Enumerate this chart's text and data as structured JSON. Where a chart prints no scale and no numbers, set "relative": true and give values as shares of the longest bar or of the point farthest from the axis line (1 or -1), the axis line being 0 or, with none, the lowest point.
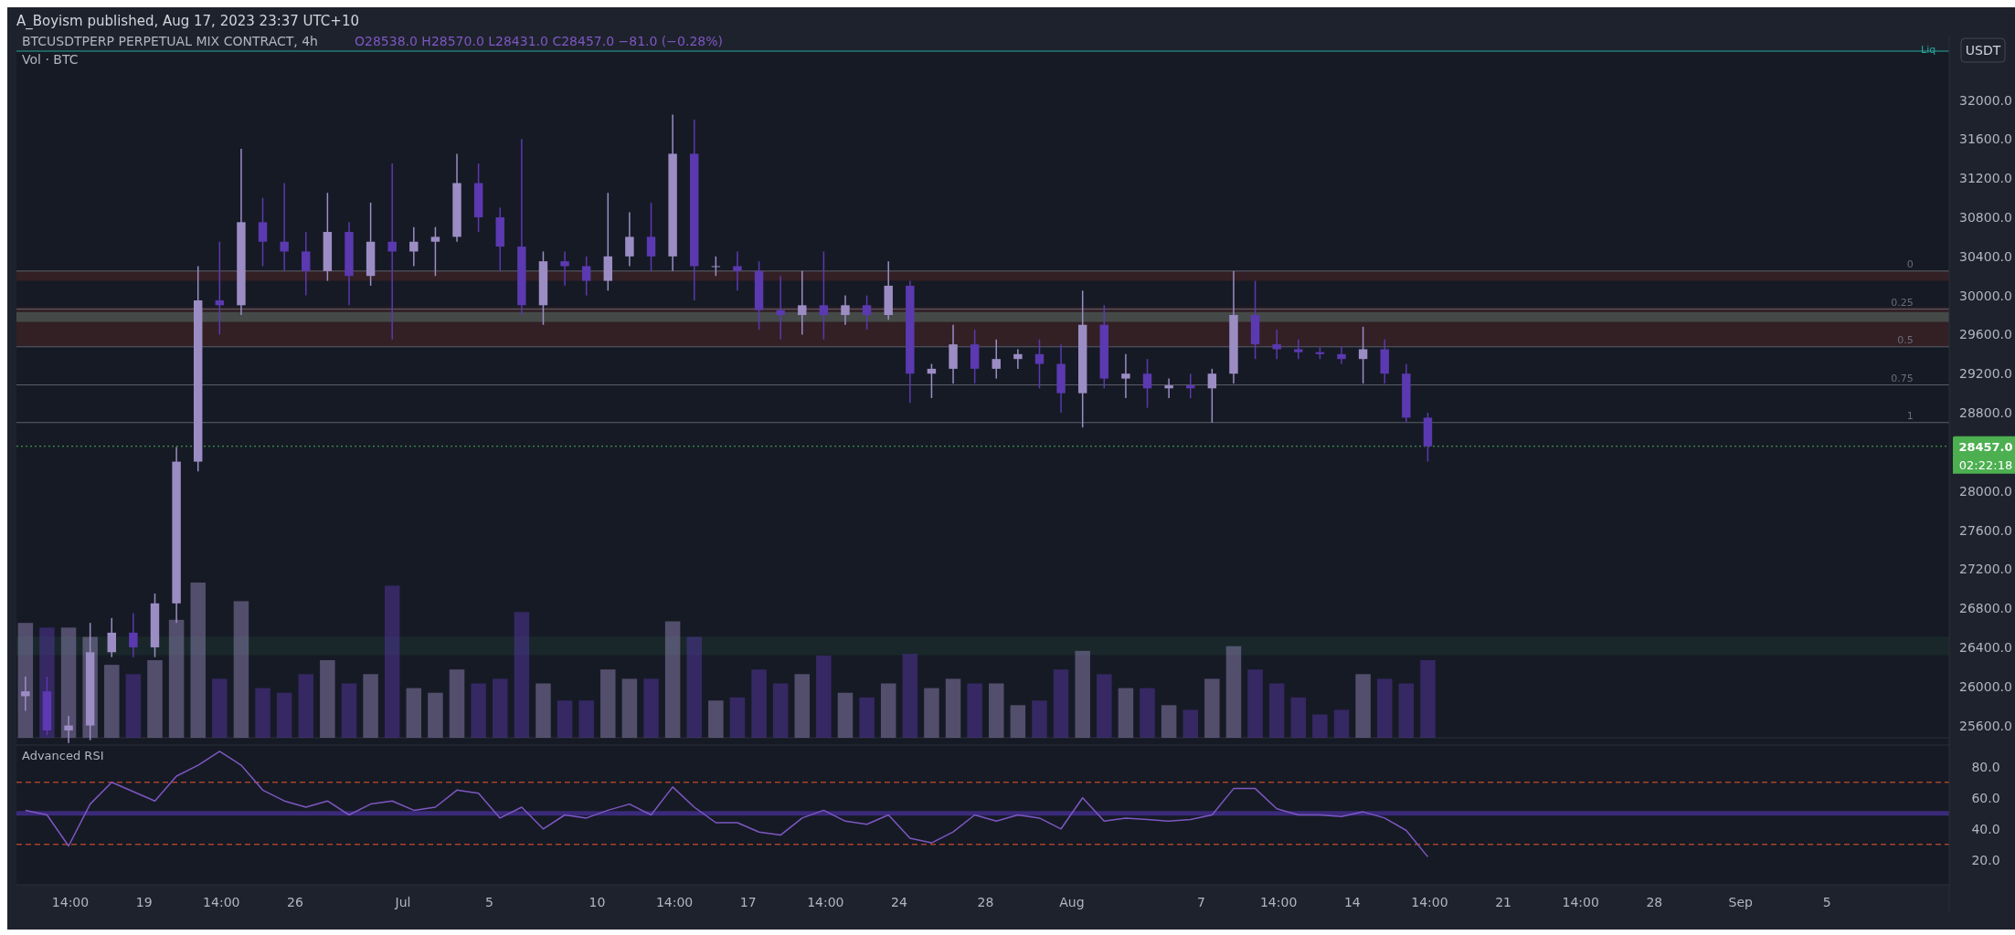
{
  "chart_data": [
    {
      "type": "candlestick",
      "title": "BTCUSDTPERP PERPETUAL MIX CONTRACT, 4h",
      "subtitle": "O28538.0 H28570.0 L28431.0 C28457.0 −81.0 (−0.28%)",
      "annotations": [
        "A_Boyism published, Aug 17, 2023 23:37 UTC+10",
        "USDT",
        "Liq",
        "02:22:18",
        {
          "text": "0",
          "x": "2023-09-09",
          "y": 30250
        },
        {
          "text": "0.25",
          "x": "2023-09-09",
          "y": 29860
        },
        {
          "text": "0.5",
          "x": "2023-09-09",
          "y": 29475
        },
        {
          "text": "0.75",
          "x": "2023-09-09",
          "y": 29085
        },
        {
          "text": "1",
          "x": "2023-09-09",
          "y": 28700
        }
      ],
      "tick_labels": "y",
      "x": [
        "2023-06-13T12:00",
        "2023-06-14T12:00",
        "2023-06-15T12:00",
        "2023-06-16T12:00",
        "2023-06-17T12:00",
        "2023-06-18T12:00",
        "2023-06-19T12:00",
        "2023-06-20T12:00",
        "2023-06-21T12:00",
        "2023-06-22T12:00",
        "2023-06-23T12:00",
        "2023-06-24T12:00",
        "2023-06-25T12:00",
        "2023-06-26T12:00",
        "2023-06-27T12:00",
        "2023-06-28T12:00",
        "2023-06-29T12:00",
        "2023-06-30T12:00",
        "2023-07-01T12:00",
        "2023-07-02T12:00",
        "2023-07-03T12:00",
        "2023-07-04T12:00",
        "2023-07-05T12:00",
        "2023-07-06T12:00",
        "2023-07-07T12:00",
        "2023-07-08T12:00",
        "2023-07-09T12:00",
        "2023-07-10T12:00",
        "2023-07-11T12:00",
        "2023-07-12T12:00",
        "2023-07-13T12:00",
        "2023-07-14T12:00",
        "2023-07-15T12:00",
        "2023-07-16T12:00",
        "2023-07-17T12:00",
        "2023-07-18T12:00",
        "2023-07-19T12:00",
        "2023-07-20T12:00",
        "2023-07-21T12:00",
        "2023-07-22T12:00",
        "2023-07-23T12:00",
        "2023-07-24T12:00",
        "2023-07-25T12:00",
        "2023-07-26T12:00",
        "2023-07-27T12:00",
        "2023-07-28T12:00",
        "2023-07-29T12:00",
        "2023-07-30T12:00",
        "2023-07-31T12:00",
        "2023-08-01T12:00",
        "2023-08-02T12:00",
        "2023-08-03T12:00",
        "2023-08-04T12:00",
        "2023-08-05T12:00",
        "2023-08-06T12:00",
        "2023-08-07T12:00",
        "2023-08-08T12:00",
        "2023-08-09T12:00",
        "2023-08-10T12:00",
        "2023-08-11T12:00",
        "2023-08-12T12:00",
        "2023-08-13T12:00",
        "2023-08-14T12:00",
        "2023-08-15T12:00",
        "2023-08-16T12:00",
        "2023-08-17T12:00"
      ],
      "ohlc": [
        [
          25900,
          26100,
          25750,
          25950
        ],
        [
          25950,
          26100,
          25500,
          25550
        ],
        [
          25550,
          25700,
          25420,
          25600
        ],
        [
          25600,
          26650,
          25450,
          26350
        ],
        [
          26350,
          26700,
          26300,
          26550
        ],
        [
          26550,
          26750,
          26300,
          26400
        ],
        [
          26400,
          26950,
          26300,
          26850
        ],
        [
          26850,
          28450,
          26650,
          28300
        ],
        [
          28300,
          30300,
          28200,
          29950
        ],
        [
          29950,
          30550,
          29600,
          29900
        ],
        [
          29900,
          31500,
          29800,
          30750
        ],
        [
          30750,
          31000,
          30300,
          30550
        ],
        [
          30550,
          31150,
          30250,
          30450
        ],
        [
          30450,
          30650,
          30000,
          30250
        ],
        [
          30250,
          31050,
          30150,
          30650
        ],
        [
          30650,
          30750,
          29900,
          30200
        ],
        [
          30200,
          30950,
          30100,
          30550
        ],
        [
          30550,
          31350,
          29550,
          30450
        ],
        [
          30450,
          30700,
          30300,
          30550
        ],
        [
          30550,
          30700,
          30200,
          30600
        ],
        [
          30600,
          31450,
          30550,
          31150
        ],
        [
          31150,
          31350,
          30650,
          30800
        ],
        [
          30800,
          30900,
          30250,
          30500
        ],
        [
          30500,
          31600,
          29800,
          29900
        ],
        [
          29900,
          30450,
          29700,
          30350
        ],
        [
          30350,
          30450,
          30100,
          30300
        ],
        [
          30300,
          30400,
          30000,
          30150
        ],
        [
          30150,
          31050,
          30050,
          30400
        ],
        [
          30400,
          30850,
          30300,
          30600
        ],
        [
          30600,
          30950,
          30250,
          30400
        ],
        [
          30400,
          31850,
          30250,
          31450
        ],
        [
          31450,
          31800,
          29950,
          30300
        ],
        [
          30300,
          30400,
          30200,
          30300
        ],
        [
          30300,
          30450,
          30050,
          30250
        ],
        [
          30250,
          30350,
          29650,
          29850
        ],
        [
          29850,
          30200,
          29550,
          29800
        ],
        [
          29800,
          30250,
          29600,
          29900
        ],
        [
          29900,
          30450,
          29550,
          29800
        ],
        [
          29800,
          30000,
          29700,
          29900
        ],
        [
          29900,
          30000,
          29650,
          29800
        ],
        [
          29800,
          30350,
          29750,
          30100
        ],
        [
          30100,
          30150,
          28900,
          29200
        ],
        [
          29200,
          29300,
          28950,
          29250
        ],
        [
          29250,
          29700,
          29100,
          29500
        ],
        [
          29500,
          29650,
          29100,
          29250
        ],
        [
          29250,
          29550,
          29150,
          29350
        ],
        [
          29350,
          29450,
          29250,
          29400
        ],
        [
          29400,
          29550,
          29050,
          29300
        ],
        [
          29300,
          29500,
          28800,
          29000
        ],
        [
          29000,
          30050,
          28650,
          29700
        ],
        [
          29700,
          29900,
          29050,
          29150
        ],
        [
          29150,
          29400,
          28950,
          29200
        ],
        [
          29200,
          29350,
          28850,
          29050
        ],
        [
          29050,
          29150,
          28950,
          29080
        ],
        [
          29080,
          29200,
          28950,
          29050
        ],
        [
          29050,
          29250,
          28700,
          29200
        ],
        [
          29200,
          30250,
          29100,
          29800
        ],
        [
          29800,
          30150,
          29350,
          29500
        ],
        [
          29500,
          29650,
          29350,
          29450
        ],
        [
          29450,
          29550,
          29350,
          29420
        ],
        [
          29420,
          29470,
          29350,
          29400
        ],
        [
          29400,
          29480,
          29300,
          29350
        ],
        [
          29350,
          29680,
          29100,
          29450
        ],
        [
          29450,
          29550,
          29100,
          29200
        ],
        [
          29200,
          29300,
          28700,
          28750
        ],
        [
          28750,
          28800,
          28300,
          28457
        ]
      ],
      "xlim": [
        "2023-06-13T02:00",
        "2023-09-10T16:00"
      ],
      "ylim": [
        25400,
        32500
      ],
      "yticks": [
        {
          "value": 25600,
          "label": "25600.0"
        },
        {
          "value": 26000,
          "label": "26000.0"
        },
        {
          "value": 26400,
          "label": "26400.0"
        },
        {
          "value": 26800,
          "label": "26800.0"
        },
        {
          "value": 27200,
          "label": "27200.0"
        },
        {
          "value": 27600,
          "label": "27600.0"
        },
        {
          "value": 28000,
          "label": "28000.0"
        },
        {
          "value": 28800,
          "label": "28800.0"
        },
        {
          "value": 29200,
          "label": "29200.0"
        },
        {
          "value": 29600,
          "label": "29600.0"
        },
        {
          "value": 30000,
          "label": "30000.0"
        },
        {
          "value": 30400,
          "label": "30400.0"
        },
        {
          "value": 30800,
          "label": "30800.0"
        },
        {
          "value": 31200,
          "label": "31200.0"
        },
        {
          "value": 31600,
          "label": "31600.0"
        },
        {
          "value": 32000,
          "label": "32000.0"
        }
      ],
      "bands": [
        {
          "axis": "y",
          "from": 29480,
          "to": 29880,
          "label": null,
          "color": "#3a2226"
        },
        {
          "axis": "y",
          "from": 30150,
          "to": 30250,
          "label": null,
          "color": "#3a2226"
        },
        {
          "axis": "y",
          "from": 29730,
          "to": 29830,
          "label": null,
          "color": "#4a5552"
        },
        {
          "axis": "y",
          "from": 26320,
          "to": 26510,
          "label": null,
          "color": "#1a2a2c"
        }
      ],
      "ref_lines": [
        {
          "axis": "y",
          "value": 30250,
          "label": null,
          "color": "#5d606b"
        },
        {
          "axis": "y",
          "value": 29860,
          "label": null,
          "color": "#5d606b"
        },
        {
          "axis": "y",
          "value": 29475,
          "label": null,
          "color": "#5d606b"
        },
        {
          "axis": "y",
          "value": 29085,
          "label": null,
          "color": "#5d606b"
        },
        {
          "axis": "y",
          "value": 28700,
          "label": null,
          "color": "#5d606b"
        },
        {
          "axis": "y",
          "value": 28457,
          "label": "28457.0",
          "color": "#4caf50",
          "line_style": "dotted"
        }
      ]
    },
    {
      "type": "bar",
      "title": "Vol · BTC",
      "relative": true,
      "x": [
        "2023-06-13T12:00",
        "2023-06-14T12:00",
        "2023-06-15T12:00",
        "2023-06-16T12:00",
        "2023-06-17T12:00",
        "2023-06-18T12:00",
        "2023-06-19T12:00",
        "2023-06-20T12:00",
        "2023-06-21T12:00",
        "2023-06-22T12:00",
        "2023-06-23T12:00",
        "2023-06-24T12:00",
        "2023-06-25T12:00",
        "2023-06-26T12:00",
        "2023-06-27T12:00",
        "2023-06-28T12:00",
        "2023-06-29T12:00",
        "2023-06-30T12:00",
        "2023-07-01T12:00",
        "2023-07-02T12:00",
        "2023-07-03T12:00",
        "2023-07-04T12:00",
        "2023-07-05T12:00",
        "2023-07-06T12:00",
        "2023-07-07T12:00",
        "2023-07-08T12:00",
        "2023-07-09T12:00",
        "2023-07-10T12:00",
        "2023-07-11T12:00",
        "2023-07-12T12:00",
        "2023-07-13T12:00",
        "2023-07-14T12:00",
        "2023-07-15T12:00",
        "2023-07-16T12:00",
        "2023-07-17T12:00",
        "2023-07-18T12:00",
        "2023-07-19T12:00",
        "2023-07-20T12:00",
        "2023-07-21T12:00",
        "2023-07-22T12:00",
        "2023-07-23T12:00",
        "2023-07-24T12:00",
        "2023-07-25T12:00",
        "2023-07-26T12:00",
        "2023-07-27T12:00",
        "2023-07-28T12:00",
        "2023-07-29T12:00",
        "2023-07-30T12:00",
        "2023-07-31T12:00",
        "2023-08-01T12:00",
        "2023-08-02T12:00",
        "2023-08-03T12:00",
        "2023-08-04T12:00",
        "2023-08-05T12:00",
        "2023-08-06T12:00",
        "2023-08-07T12:00",
        "2023-08-08T12:00",
        "2023-08-09T12:00",
        "2023-08-10T12:00",
        "2023-08-11T12:00",
        "2023-08-12T12:00",
        "2023-08-13T12:00",
        "2023-08-14T12:00",
        "2023-08-15T12:00",
        "2023-08-16T12:00",
        "2023-08-17T12:00"
      ],
      "values": [
        0.74,
        0.71,
        0.71,
        0.65,
        0.47,
        0.41,
        0.5,
        0.76,
        1,
        0.38,
        0.88,
        0.32,
        0.29,
        0.41,
        0.5,
        0.35,
        0.41,
        0.98,
        0.32,
        0.29,
        0.44,
        0.35,
        0.38,
        0.81,
        0.35,
        0.24,
        0.24,
        0.44,
        0.38,
        0.38,
        0.75,
        0.65,
        0.24,
        0.26,
        0.44,
        0.35,
        0.41,
        0.53,
        0.29,
        0.26,
        0.35,
        0.54,
        0.32,
        0.38,
        0.35,
        0.35,
        0.21,
        0.24,
        0.44,
        0.56,
        0.41,
        0.32,
        0.32,
        0.21,
        0.18,
        0.38,
        0.59,
        0.44,
        0.35,
        0.26,
        0.15,
        0.18,
        0.41,
        0.38,
        0.35,
        0.5
      ],
      "colors": [
        "#9b8dc4",
        "#5b39b0",
        "#9b8dc4",
        "#9b8dc4",
        "#9b8dc4",
        "#5b39b0",
        "#9b8dc4",
        "#9b8dc4",
        "#9b8dc4",
        "#5b39b0",
        "#9b8dc4",
        "#5b39b0",
        "#5b39b0",
        "#5b39b0",
        "#9b8dc4",
        "#5b39b0",
        "#9b8dc4",
        "#5b39b0",
        "#9b8dc4",
        "#9b8dc4",
        "#9b8dc4",
        "#5b39b0",
        "#5b39b0",
        "#5b39b0",
        "#9b8dc4",
        "#5b39b0",
        "#5b39b0",
        "#9b8dc4",
        "#9b8dc4",
        "#5b39b0",
        "#9b8dc4",
        "#5b39b0",
        "#9b8dc4",
        "#5b39b0",
        "#5b39b0",
        "#5b39b0",
        "#9b8dc4",
        "#5b39b0",
        "#9b8dc4",
        "#5b39b0",
        "#9b8dc4",
        "#5b39b0",
        "#9b8dc4",
        "#9b8dc4",
        "#5b39b0",
        "#9b8dc4",
        "#9b8dc4",
        "#5b39b0",
        "#5b39b0",
        "#9b8dc4",
        "#5b39b0",
        "#9b8dc4",
        "#5b39b0",
        "#9b8dc4",
        "#5b39b0",
        "#9b8dc4",
        "#9b8dc4",
        "#5b39b0",
        "#5b39b0",
        "#5b39b0",
        "#5b39b0",
        "#5b39b0",
        "#9b8dc4",
        "#5b39b0",
        "#5b39b0",
        "#5b39b0"
      ],
      "xlim": [
        "2023-06-13T02:00",
        "2023-09-10T16:00"
      ]
    },
    {
      "type": "line",
      "title": "Advanced RSI",
      "x": [
        "2023-06-13T12:00",
        "2023-06-14T12:00",
        "2023-06-15T12:00",
        "2023-06-16T12:00",
        "2023-06-17T12:00",
        "2023-06-18T12:00",
        "2023-06-19T12:00",
        "2023-06-20T12:00",
        "2023-06-21T12:00",
        "2023-06-22T12:00",
        "2023-06-23T12:00",
        "2023-06-24T12:00",
        "2023-06-25T12:00",
        "2023-06-26T12:00",
        "2023-06-27T12:00",
        "2023-06-28T12:00",
        "2023-06-29T12:00",
        "2023-06-30T12:00",
        "2023-07-01T12:00",
        "2023-07-02T12:00",
        "2023-07-03T12:00",
        "2023-07-04T12:00",
        "2023-07-05T12:00",
        "2023-07-06T12:00",
        "2023-07-07T12:00",
        "2023-07-08T12:00",
        "2023-07-09T12:00",
        "2023-07-10T12:00",
        "2023-07-11T12:00",
        "2023-07-12T12:00",
        "2023-07-13T12:00",
        "2023-07-14T12:00",
        "2023-07-15T12:00",
        "2023-07-16T12:00",
        "2023-07-17T12:00",
        "2023-07-18T12:00",
        "2023-07-19T12:00",
        "2023-07-20T12:00",
        "2023-07-21T12:00",
        "2023-07-22T12:00",
        "2023-07-23T12:00",
        "2023-07-24T12:00",
        "2023-07-25T12:00",
        "2023-07-26T12:00",
        "2023-07-27T12:00",
        "2023-07-28T12:00",
        "2023-07-29T12:00",
        "2023-07-30T12:00",
        "2023-07-31T12:00",
        "2023-08-01T12:00",
        "2023-08-02T12:00",
        "2023-08-03T12:00",
        "2023-08-04T12:00",
        "2023-08-05T12:00",
        "2023-08-06T12:00",
        "2023-08-07T12:00",
        "2023-08-08T12:00",
        "2023-08-09T12:00",
        "2023-08-10T12:00",
        "2023-08-11T12:00",
        "2023-08-12T12:00",
        "2023-08-13T12:00",
        "2023-08-14T12:00",
        "2023-08-15T12:00",
        "2023-08-16T12:00",
        "2023-08-17T12:00"
      ],
      "series": [
        {
          "color": "#7e57c2",
          "values": [
            52,
            49,
            29,
            56,
            70,
            64,
            58,
            74,
            81,
            90,
            81,
            65,
            58,
            54,
            58,
            49,
            56,
            58,
            52,
            54,
            65,
            63,
            47,
            54,
            40,
            49,
            47,
            52,
            56,
            49,
            67,
            54,
            44,
            44,
            38,
            36,
            47,
            52,
            45,
            43,
            49,
            34,
            31,
            38,
            49,
            45,
            49,
            47,
            40,
            60,
            45,
            47,
            46,
            45,
            46,
            49,
            66,
            66,
            53,
            49,
            49,
            48,
            51,
            47,
            39,
            22
          ]
        }
      ],
      "xlim": [
        "2023-06-13T02:00",
        "2023-09-10T16:00"
      ],
      "xticks": [
        {
          "value": "2023-06-15T14:00",
          "label": "14:00"
        },
        {
          "value": "2023-06-19",
          "label": "19"
        },
        {
          "value": "2023-06-22T14:00",
          "label": "14:00"
        },
        {
          "value": "2023-06-26",
          "label": "26"
        },
        {
          "value": "2023-07-01",
          "label": "Jul"
        },
        {
          "value": "2023-07-05",
          "label": "5"
        },
        {
          "value": "2023-07-10",
          "label": "10"
        },
        {
          "value": "2023-07-13T14:00",
          "label": "14:00"
        },
        {
          "value": "2023-07-17",
          "label": "17"
        },
        {
          "value": "2023-07-20T14:00",
          "label": "14:00"
        },
        {
          "value": "2023-07-24",
          "label": "24"
        },
        {
          "value": "2023-07-28",
          "label": "28"
        },
        {
          "value": "2023-08-01",
          "label": "Aug"
        },
        {
          "value": "2023-08-07",
          "label": "7"
        },
        {
          "value": "2023-08-10T14:00",
          "label": "14:00"
        },
        {
          "value": "2023-08-14",
          "label": "14"
        },
        {
          "value": "2023-08-17T14:00",
          "label": "14:00"
        },
        {
          "value": "2023-08-21",
          "label": "21"
        },
        {
          "value": "2023-08-24T14:00",
          "label": "14:00"
        },
        {
          "value": "2023-08-28",
          "label": "28"
        },
        {
          "value": "2023-09-01",
          "label": "Sep"
        },
        {
          "value": "2023-09-05",
          "label": "5"
        }
      ],
      "ylim": [
        4,
        94
      ],
      "yticks": [
        {
          "value": 20,
          "label": "20.0"
        },
        {
          "value": 40,
          "label": "40.0"
        },
        {
          "value": 60,
          "label": "60.0"
        },
        {
          "value": 80,
          "label": "80.0"
        }
      ],
      "ref_lines": [
        {
          "axis": "y",
          "value": 70,
          "label": null,
          "color": "#f0582a",
          "line_style": "dashed"
        },
        {
          "axis": "y",
          "value": 50,
          "label": null,
          "color": "#3a2a7a"
        },
        {
          "axis": "y",
          "value": 30,
          "label": null,
          "color": "#f0582a",
          "line_style": "dashed"
        }
      ]
    }
  ]
}
